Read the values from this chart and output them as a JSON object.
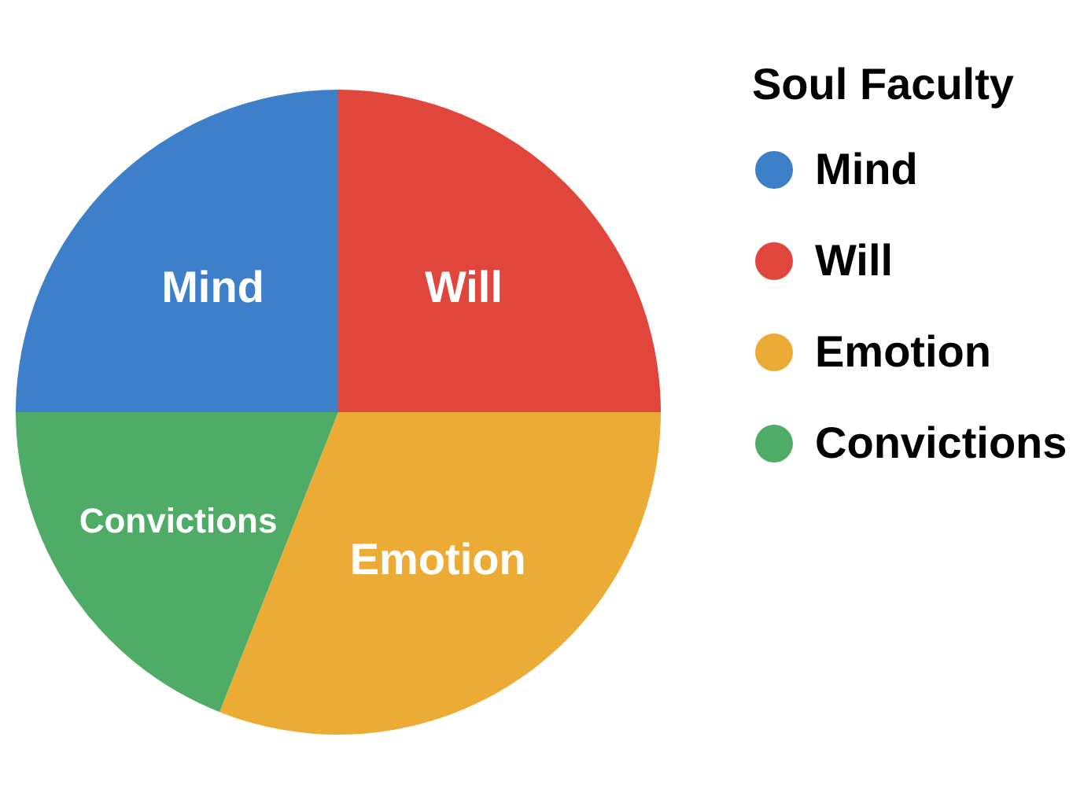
{
  "chart_data": {
    "type": "pie",
    "legend_title": "Soul Faculty",
    "legend": "right",
    "categories": [
      "Mind",
      "Will",
      "Emotion",
      "Convictions"
    ],
    "values": [
      25,
      25,
      31,
      19
    ],
    "colors": [
      "#3d7fc9",
      "#e0463c",
      "#ecab35",
      "#4fac66"
    ]
  }
}
